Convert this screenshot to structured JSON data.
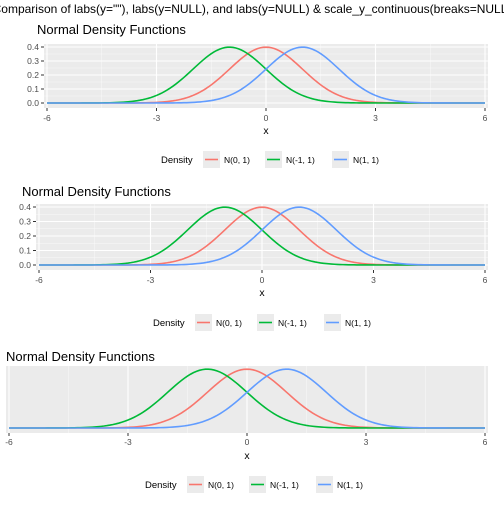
{
  "page_title": "Comparison of labs(y=\"\"), labs(y=NULL), and labs(y=NULL) & scale_y_continuous(breaks=NULL)",
  "colors": {
    "panel": "#EBEBEB",
    "grid_major": "#FFFFFF",
    "axis_text": "#4D4D4D",
    "tick": "#333333",
    "text": "#000000"
  },
  "chart_data": [
    {
      "type": "line",
      "title": "Normal Density Functions",
      "xlabel": "x",
      "ylabel": "",
      "xlim": [
        -6,
        6
      ],
      "ylim": [
        0,
        0.4
      ],
      "x_ticks": [
        -6,
        -3,
        0,
        3,
        6
      ],
      "x_tick_labels": [
        "-6",
        "-3",
        "0",
        "3",
        "6"
      ],
      "y_ticks": [
        0.0,
        0.1,
        0.2,
        0.3,
        0.4
      ],
      "y_tick_labels": [
        "0.0",
        "0.1",
        "0.2",
        "0.3",
        "0.4"
      ],
      "grid": true,
      "legend": {
        "position": "bottom",
        "title": "Density"
      },
      "series": [
        {
          "name": "N(0, 1)",
          "color": "#F8766D",
          "mean": 0,
          "sd": 1
        },
        {
          "name": "N(-1, 1)",
          "color": "#00BA38",
          "mean": -1,
          "sd": 1
        },
        {
          "name": "N(1, 1)",
          "color": "#619CFF",
          "mean": 1,
          "sd": 1
        }
      ]
    },
    {
      "type": "line",
      "title": "Normal Density Functions",
      "xlabel": "x",
      "xlim": [
        -6,
        6
      ],
      "ylim": [
        0,
        0.4
      ],
      "x_ticks": [
        -6,
        -3,
        0,
        3,
        6
      ],
      "x_tick_labels": [
        "-6",
        "-3",
        "0",
        "3",
        "6"
      ],
      "y_ticks": [
        0.0,
        0.1,
        0.2,
        0.3,
        0.4
      ],
      "y_tick_labels": [
        "0.0",
        "0.1",
        "0.2",
        "0.3",
        "0.4"
      ],
      "grid": true,
      "legend": {
        "position": "bottom",
        "title": "Density"
      },
      "series": [
        {
          "name": "N(0, 1)",
          "color": "#F8766D",
          "mean": 0,
          "sd": 1
        },
        {
          "name": "N(-1, 1)",
          "color": "#00BA38",
          "mean": -1,
          "sd": 1
        },
        {
          "name": "N(1, 1)",
          "color": "#619CFF",
          "mean": 1,
          "sd": 1
        }
      ]
    },
    {
      "type": "line",
      "title": "Normal Density Functions",
      "xlabel": "x",
      "xlim": [
        -6,
        6
      ],
      "ylim": [
        0,
        0.4
      ],
      "x_ticks": [
        -6,
        -3,
        0,
        3,
        6
      ],
      "x_tick_labels": [
        "-6",
        "-3",
        "0",
        "3",
        "6"
      ],
      "y_ticks": [],
      "y_tick_labels": [],
      "grid": true,
      "legend": {
        "position": "bottom",
        "title": "Density"
      },
      "series": [
        {
          "name": "N(0, 1)",
          "color": "#F8766D",
          "mean": 0,
          "sd": 1
        },
        {
          "name": "N(-1, 1)",
          "color": "#00BA38",
          "mean": -1,
          "sd": 1
        },
        {
          "name": "N(1, 1)",
          "color": "#619CFF",
          "mean": 1,
          "sd": 1
        }
      ]
    }
  ]
}
